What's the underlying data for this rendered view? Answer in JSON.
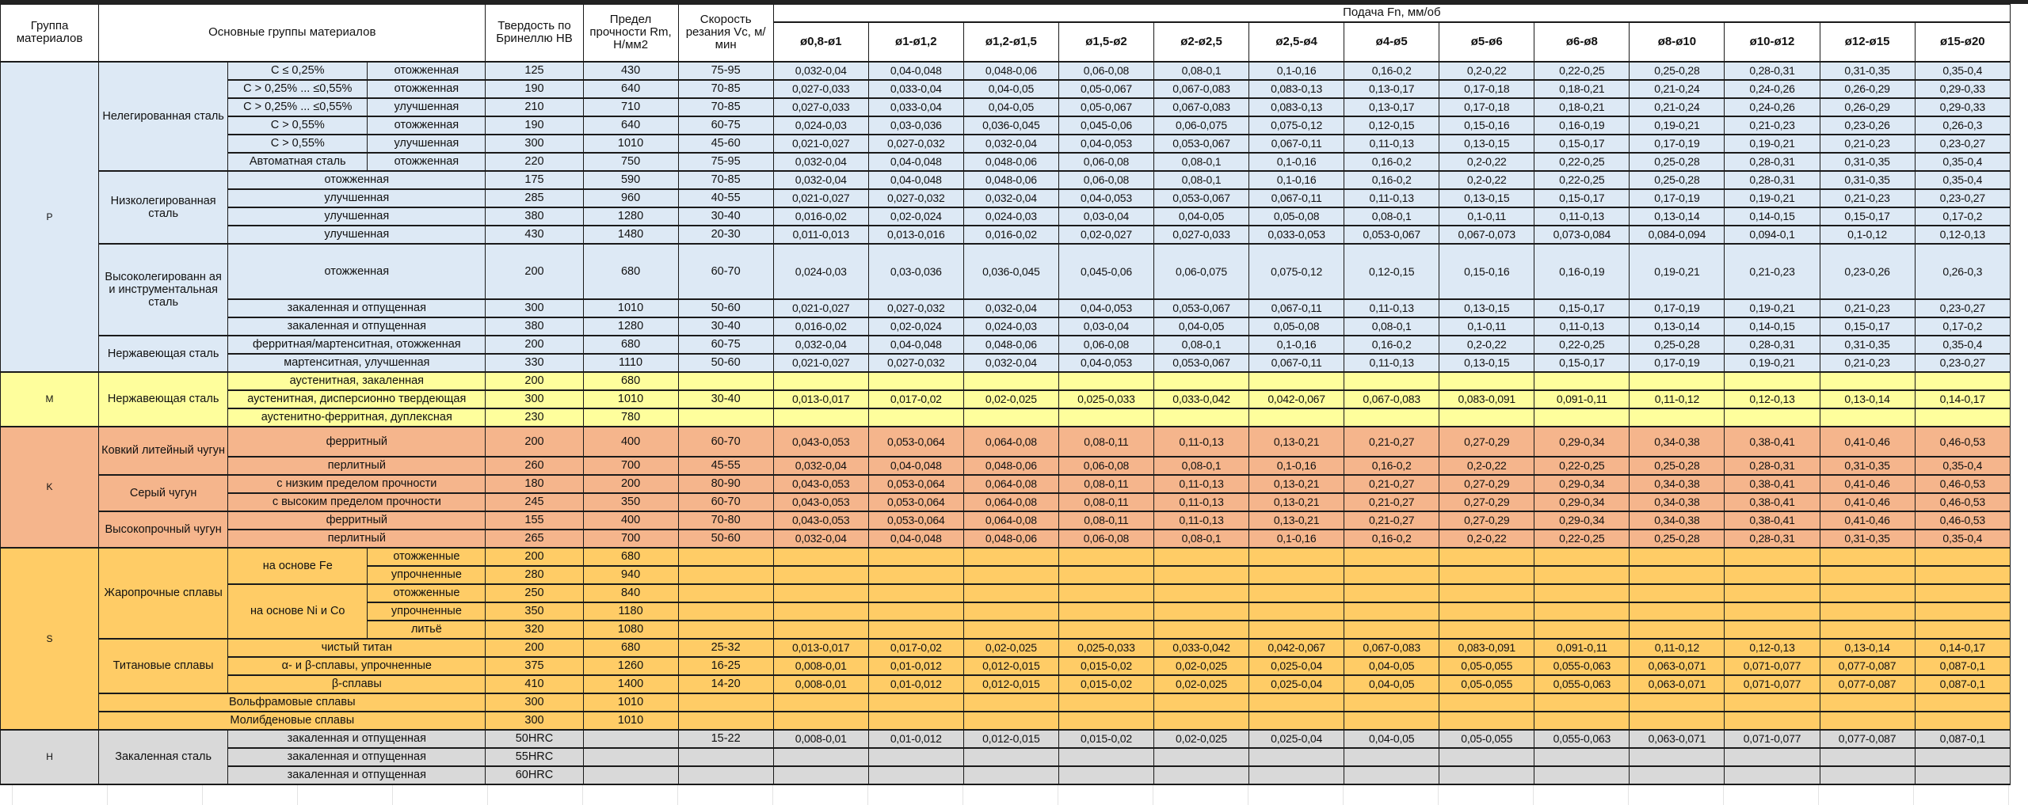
{
  "colors": {
    "P": "#dde9f5",
    "M": "#fefe9c",
    "K": "#f5b58c",
    "S": "#ffcc66",
    "H": "#d9d9d9"
  },
  "header": {
    "group": "Группа материалов",
    "main_groups": "Основные группы материалов",
    "hardness": "Твердость по Бринеллю HB",
    "strength": "Предел прочности Rm, Н/мм2",
    "speed": "Скорость резания Vc, м/мин",
    "feed": "Подача Fn, мм/об",
    "diameters": [
      "ø0,8-ø1",
      "ø1-ø1,2",
      "ø1,2-ø1,5",
      "ø1,5-ø2",
      "ø2-ø2,5",
      "ø2,5-ø4",
      "ø4-ø5",
      "ø5-ø6",
      "ø6-ø8",
      "ø8-ø10",
      "ø10-ø12",
      "ø12-ø15",
      "ø15-ø20"
    ]
  },
  "groups": [
    {
      "code": "P",
      "subgroups": [
        {
          "name": "Нелегированная сталь",
          "rows": [
            {
              "condition": "C ≤ 0,25%",
              "treatment": "отожженная",
              "hb": "125",
              "rm": "430",
              "vc": "75-95",
              "feeds": [
                "0,032-0,04",
                "0,04-0,048",
                "0,048-0,06",
                "0,06-0,08",
                "0,08-0,1",
                "0,1-0,16",
                "0,16-0,2",
                "0,2-0,22",
                "0,22-0,25",
                "0,25-0,28",
                "0,28-0,31",
                "0,31-0,35",
                "0,35-0,4"
              ]
            },
            {
              "condition": "C > 0,25% ... ≤0,55%",
              "treatment": "отожженная",
              "hb": "190",
              "rm": "640",
              "vc": "70-85",
              "feeds": [
                "0,027-0,033",
                "0,033-0,04",
                "0,04-0,05",
                "0,05-0,067",
                "0,067-0,083",
                "0,083-0,13",
                "0,13-0,17",
                "0,17-0,18",
                "0,18-0,21",
                "0,21-0,24",
                "0,24-0,26",
                "0,26-0,29",
                "0,29-0,33"
              ]
            },
            {
              "condition": "C > 0,25% ... ≤0,55%",
              "treatment": "улучшенная",
              "hb": "210",
              "rm": "710",
              "vc": "70-85",
              "feeds": [
                "0,027-0,033",
                "0,033-0,04",
                "0,04-0,05",
                "0,05-0,067",
                "0,067-0,083",
                "0,083-0,13",
                "0,13-0,17",
                "0,17-0,18",
                "0,18-0,21",
                "0,21-0,24",
                "0,24-0,26",
                "0,26-0,29",
                "0,29-0,33"
              ]
            },
            {
              "condition": "C > 0,55%",
              "treatment": "отожженная",
              "hb": "190",
              "rm": "640",
              "vc": "60-75",
              "feeds": [
                "0,024-0,03",
                "0,03-0,036",
                "0,036-0,045",
                "0,045-0,06",
                "0,06-0,075",
                "0,075-0,12",
                "0,12-0,15",
                "0,15-0,16",
                "0,16-0,19",
                "0,19-0,21",
                "0,21-0,23",
                "0,23-0,26",
                "0,26-0,3"
              ]
            },
            {
              "condition": "C > 0,55%",
              "treatment": "улучшенная",
              "hb": "300",
              "rm": "1010",
              "vc": "45-60",
              "feeds": [
                "0,021-0,027",
                "0,027-0,032",
                "0,032-0,04",
                "0,04-0,053",
                "0,053-0,067",
                "0,067-0,11",
                "0,11-0,13",
                "0,13-0,15",
                "0,15-0,17",
                "0,17-0,19",
                "0,19-0,21",
                "0,21-0,23",
                "0,23-0,27"
              ]
            },
            {
              "condition": "Автоматная сталь",
              "treatment": "отожженная",
              "hb": "220",
              "rm": "750",
              "vc": "75-95",
              "feeds": [
                "0,032-0,04",
                "0,04-0,048",
                "0,048-0,06",
                "0,06-0,08",
                "0,08-0,1",
                "0,1-0,16",
                "0,16-0,2",
                "0,2-0,22",
                "0,22-0,25",
                "0,25-0,28",
                "0,28-0,31",
                "0,31-0,35",
                "0,35-0,4"
              ]
            }
          ]
        },
        {
          "name": "Низколегированная сталь",
          "rows": [
            {
              "desc": "отожженная",
              "hb": "175",
              "rm": "590",
              "vc": "70-85",
              "feeds": [
                "0,032-0,04",
                "0,04-0,048",
                "0,048-0,06",
                "0,06-0,08",
                "0,08-0,1",
                "0,1-0,16",
                "0,16-0,2",
                "0,2-0,22",
                "0,22-0,25",
                "0,25-0,28",
                "0,28-0,31",
                "0,31-0,35",
                "0,35-0,4"
              ]
            },
            {
              "desc": "улучшенная",
              "hb": "285",
              "rm": "960",
              "vc": "40-55",
              "feeds": [
                "0,021-0,027",
                "0,027-0,032",
                "0,032-0,04",
                "0,04-0,053",
                "0,053-0,067",
                "0,067-0,11",
                "0,11-0,13",
                "0,13-0,15",
                "0,15-0,17",
                "0,17-0,19",
                "0,19-0,21",
                "0,21-0,23",
                "0,23-0,27"
              ]
            },
            {
              "desc": "улучшенная",
              "hb": "380",
              "rm": "1280",
              "vc": "30-40",
              "feeds": [
                "0,016-0,02",
                "0,02-0,024",
                "0,024-0,03",
                "0,03-0,04",
                "0,04-0,05",
                "0,05-0,08",
                "0,08-0,1",
                "0,1-0,11",
                "0,11-0,13",
                "0,13-0,14",
                "0,14-0,15",
                "0,15-0,17",
                "0,17-0,2"
              ]
            },
            {
              "desc": "улучшенная",
              "hb": "430",
              "rm": "1480",
              "vc": "20-30",
              "feeds": [
                "0,011-0,013",
                "0,013-0,016",
                "0,016-0,02",
                "0,02-0,027",
                "0,027-0,033",
                "0,033-0,053",
                "0,053-0,067",
                "0,067-0,073",
                "0,073-0,084",
                "0,084-0,094",
                "0,094-0,1",
                "0,1-0,12",
                "0,12-0,13"
              ]
            }
          ]
        },
        {
          "name": "Высоколегированн ая и инструментальная сталь",
          "rows": [
            {
              "desc": "отожженная",
              "hb": "200",
              "rm": "680",
              "vc": "60-70",
              "feeds": [
                "0,024-0,03",
                "0,03-0,036",
                "0,036-0,045",
                "0,045-0,06",
                "0,06-0,075",
                "0,075-0,12",
                "0,12-0,15",
                "0,15-0,16",
                "0,16-0,19",
                "0,19-0,21",
                "0,21-0,23",
                "0,23-0,26",
                "0,26-0,3"
              ]
            },
            {
              "desc": "закаленная и отпущенная",
              "hb": "300",
              "rm": "1010",
              "vc": "50-60",
              "feeds": [
                "0,021-0,027",
                "0,027-0,032",
                "0,032-0,04",
                "0,04-0,053",
                "0,053-0,067",
                "0,067-0,11",
                "0,11-0,13",
                "0,13-0,15",
                "0,15-0,17",
                "0,17-0,19",
                "0,19-0,21",
                "0,21-0,23",
                "0,23-0,27"
              ]
            },
            {
              "desc": "закаленная и отпущенная",
              "hb": "380",
              "rm": "1280",
              "vc": "30-40",
              "feeds": [
                "0,016-0,02",
                "0,02-0,024",
                "0,024-0,03",
                "0,03-0,04",
                "0,04-0,05",
                "0,05-0,08",
                "0,08-0,1",
                "0,1-0,11",
                "0,11-0,13",
                "0,13-0,14",
                "0,14-0,15",
                "0,15-0,17",
                "0,17-0,2"
              ]
            }
          ]
        },
        {
          "name": "Нержавеющая сталь",
          "rows": [
            {
              "desc": "ферритная/мартенситная, отожженная",
              "hb": "200",
              "rm": "680",
              "vc": "60-75",
              "feeds": [
                "0,032-0,04",
                "0,04-0,048",
                "0,048-0,06",
                "0,06-0,08",
                "0,08-0,1",
                "0,1-0,16",
                "0,16-0,2",
                "0,2-0,22",
                "0,22-0,25",
                "0,25-0,28",
                "0,28-0,31",
                "0,31-0,35",
                "0,35-0,4"
              ]
            },
            {
              "desc": "мартенситная, улучшенная",
              "hb": "330",
              "rm": "1110",
              "vc": "50-60",
              "feeds": [
                "0,021-0,027",
                "0,027-0,032",
                "0,032-0,04",
                "0,04-0,053",
                "0,053-0,067",
                "0,067-0,11",
                "0,11-0,13",
                "0,13-0,15",
                "0,15-0,17",
                "0,17-0,19",
                "0,19-0,21",
                "0,21-0,23",
                "0,23-0,27"
              ]
            }
          ]
        }
      ]
    },
    {
      "code": "M",
      "subgroups": [
        {
          "name": "Нержавеющая сталь",
          "rows": [
            {
              "desc": "аустенитная, закаленная",
              "hb": "200",
              "rm": "680",
              "vc": "",
              "feeds": []
            },
            {
              "desc": "аустенитная, дисперсионно твердеющая",
              "hb": "300",
              "rm": "1010",
              "vc": "30-40",
              "feeds": [
                "0,013-0,017",
                "0,017-0,02",
                "0,02-0,025",
                "0,025-0,033",
                "0,033-0,042",
                "0,042-0,067",
                "0,067-0,083",
                "0,083-0,091",
                "0,091-0,11",
                "0,11-0,12",
                "0,12-0,13",
                "0,13-0,14",
                "0,14-0,17"
              ]
            },
            {
              "desc": "аустенитно-ферритная, дуплексная",
              "hb": "230",
              "rm": "780",
              "vc": "",
              "feeds": []
            }
          ]
        }
      ]
    },
    {
      "code": "K",
      "subgroups": [
        {
          "name": "Ковкий литейный чугун",
          "rows": [
            {
              "desc": "ферритный",
              "hb": "200",
              "rm": "400",
              "vc": "60-70",
              "feeds": [
                "0,043-0,053",
                "0,053-0,064",
                "0,064-0,08",
                "0,08-0,11",
                "0,11-0,13",
                "0,13-0,21",
                "0,21-0,27",
                "0,27-0,29",
                "0,29-0,34",
                "0,34-0,38",
                "0,38-0,41",
                "0,41-0,46",
                "0,46-0,53"
              ]
            },
            {
              "desc": "перлитный",
              "hb": "260",
              "rm": "700",
              "vc": "45-55",
              "feeds": [
                "0,032-0,04",
                "0,04-0,048",
                "0,048-0,06",
                "0,06-0,08",
                "0,08-0,1",
                "0,1-0,16",
                "0,16-0,2",
                "0,2-0,22",
                "0,22-0,25",
                "0,25-0,28",
                "0,28-0,31",
                "0,31-0,35",
                "0,35-0,4"
              ]
            }
          ]
        },
        {
          "name": "Серый чугун",
          "rows": [
            {
              "desc": "с низким пределом прочности",
              "hb": "180",
              "rm": "200",
              "vc": "80-90",
              "feeds": [
                "0,043-0,053",
                "0,053-0,064",
                "0,064-0,08",
                "0,08-0,11",
                "0,11-0,13",
                "0,13-0,21",
                "0,21-0,27",
                "0,27-0,29",
                "0,29-0,34",
                "0,34-0,38",
                "0,38-0,41",
                "0,41-0,46",
                "0,46-0,53"
              ]
            },
            {
              "desc": "с высоким пределом прочности",
              "hb": "245",
              "rm": "350",
              "vc": "60-70",
              "feeds": [
                "0,043-0,053",
                "0,053-0,064",
                "0,064-0,08",
                "0,08-0,11",
                "0,11-0,13",
                "0,13-0,21",
                "0,21-0,27",
                "0,27-0,29",
                "0,29-0,34",
                "0,34-0,38",
                "0,38-0,41",
                "0,41-0,46",
                "0,46-0,53"
              ]
            }
          ]
        },
        {
          "name": "Высокопрочный чугун",
          "rows": [
            {
              "desc": "ферритный",
              "hb": "155",
              "rm": "400",
              "vc": "70-80",
              "feeds": [
                "0,043-0,053",
                "0,053-0,064",
                "0,064-0,08",
                "0,08-0,11",
                "0,11-0,13",
                "0,13-0,21",
                "0,21-0,27",
                "0,27-0,29",
                "0,29-0,34",
                "0,34-0,38",
                "0,38-0,41",
                "0,41-0,46",
                "0,46-0,53"
              ]
            },
            {
              "desc": "перлитный",
              "hb": "265",
              "rm": "700",
              "vc": "50-60",
              "feeds": [
                "0,032-0,04",
                "0,04-0,048",
                "0,048-0,06",
                "0,06-0,08",
                "0,08-0,1",
                "0,1-0,16",
                "0,16-0,2",
                "0,2-0,22",
                "0,22-0,25",
                "0,25-0,28",
                "0,28-0,31",
                "0,31-0,35",
                "0,35-0,4"
              ]
            }
          ]
        }
      ]
    },
    {
      "code": "S",
      "subgroups": [
        {
          "name": "Жаропрочные сплавы",
          "bases": [
            {
              "name": "на основе Fe",
              "rows": [
                {
                  "treatment": "отожженные",
                  "hb": "200",
                  "rm": "680",
                  "vc": "",
                  "feeds": []
                },
                {
                  "treatment": "упрочненные",
                  "hb": "280",
                  "rm": "940",
                  "vc": "",
                  "feeds": []
                }
              ]
            },
            {
              "name": "на основе Ni и Co",
              "rows": [
                {
                  "treatment": "отожженные",
                  "hb": "250",
                  "rm": "840",
                  "vc": "",
                  "feeds": []
                },
                {
                  "treatment": "упрочненные",
                  "hb": "350",
                  "rm": "1180",
                  "vc": "",
                  "feeds": []
                },
                {
                  "treatment": "литьё",
                  "hb": "320",
                  "rm": "1080",
                  "vc": "",
                  "feeds": []
                }
              ]
            }
          ]
        },
        {
          "name": "Титановые сплавы",
          "rows": [
            {
              "desc": "чистый титан",
              "hb": "200",
              "rm": "680",
              "vc": "25-32",
              "feeds": [
                "0,013-0,017",
                "0,017-0,02",
                "0,02-0,025",
                "0,025-0,033",
                "0,033-0,042",
                "0,042-0,067",
                "0,067-0,083",
                "0,083-0,091",
                "0,091-0,11",
                "0,11-0,12",
                "0,12-0,13",
                "0,13-0,14",
                "0,14-0,17"
              ]
            },
            {
              "desc": "α- и β-сплавы, упрочненные",
              "hb": "375",
              "rm": "1260",
              "vc": "16-25",
              "feeds": [
                "0,008-0,01",
                "0,01-0,012",
                "0,012-0,015",
                "0,015-0,02",
                "0,02-0,025",
                "0,025-0,04",
                "0,04-0,05",
                "0,05-0,055",
                "0,055-0,063",
                "0,063-0,071",
                "0,071-0,077",
                "0,077-0,087",
                "0,087-0,1"
              ]
            },
            {
              "desc": "β-сплавы",
              "hb": "410",
              "rm": "1400",
              "vc": "14-20",
              "feeds": [
                "0,008-0,01",
                "0,01-0,012",
                "0,012-0,015",
                "0,015-0,02",
                "0,02-0,025",
                "0,025-0,04",
                "0,04-0,05",
                "0,05-0,055",
                "0,055-0,063",
                "0,063-0,071",
                "0,071-0,077",
                "0,077-0,087",
                "0,087-0,1"
              ]
            }
          ]
        },
        {
          "name": "Вольфрамовые сплавы",
          "hb": "300",
          "rm": "1010",
          "vc": "",
          "feeds": []
        },
        {
          "name": "Молибденовые сплавы",
          "hb": "300",
          "rm": "1010",
          "vc": "",
          "feeds": []
        }
      ]
    },
    {
      "code": "H",
      "subgroups": [
        {
          "name": "Закаленная сталь",
          "rows": [
            {
              "desc": "закаленная и отпущенная",
              "hb": "50HRC",
              "rm": "",
              "vc": "15-22",
              "feeds": [
                "0,008-0,01",
                "0,01-0,012",
                "0,012-0,015",
                "0,015-0,02",
                "0,02-0,025",
                "0,025-0,04",
                "0,04-0,05",
                "0,05-0,055",
                "0,055-0,063",
                "0,063-0,071",
                "0,071-0,077",
                "0,077-0,087",
                "0,087-0,1"
              ]
            },
            {
              "desc": "закаленная и отпущенная",
              "hb": "55HRC",
              "rm": "",
              "vc": "",
              "feeds": []
            },
            {
              "desc": "закаленная и отпущенная",
              "hb": "60HRC",
              "rm": "",
              "vc": "",
              "feeds": []
            }
          ]
        }
      ]
    }
  ]
}
